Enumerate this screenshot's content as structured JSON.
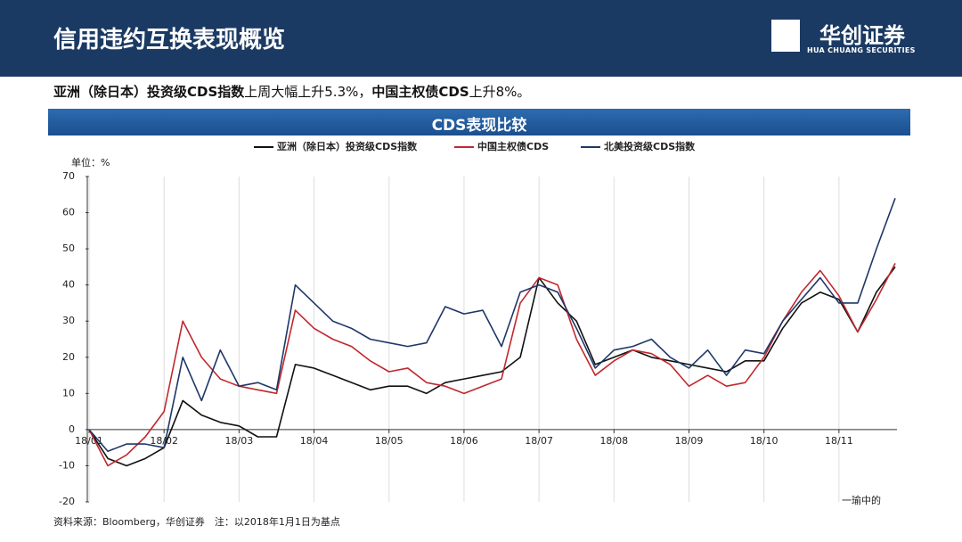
{
  "header": {
    "title": "信用违约互换表现概览",
    "logo_name": "华创证券",
    "logo_sub": "HUA CHUANG SECURITIES"
  },
  "summary": {
    "parts": [
      {
        "text": "亚洲（除日本）投资级CDS指数",
        "bold": true
      },
      {
        "text": "上周大幅上升5.3%，",
        "bold": false
      },
      {
        "text": "中国主权债CDS",
        "bold": true
      },
      {
        "text": "上升8%。",
        "bold": false
      }
    ]
  },
  "chart_data": {
    "type": "line",
    "title": "CDS表现比较",
    "unit_label": "单位：%",
    "categories": [
      "18/01",
      null,
      null,
      null,
      "18/02",
      null,
      null,
      null,
      "18/03",
      null,
      null,
      null,
      "18/04",
      null,
      null,
      null,
      "18/05",
      null,
      null,
      null,
      "18/06",
      null,
      null,
      null,
      "18/07",
      null,
      null,
      null,
      "18/08",
      null,
      null,
      null,
      "18/09",
      null,
      null,
      null,
      "18/10",
      null,
      null,
      null,
      "18/11",
      null,
      null,
      null
    ],
    "series": [
      {
        "name": "亚洲（除日本）投资级CDS指数",
        "color": "#111111",
        "values": [
          0,
          -8,
          -10,
          -8,
          -5,
          8,
          4,
          2,
          1,
          -2,
          -2,
          18,
          17,
          15,
          13,
          11,
          12,
          12,
          10,
          13,
          14,
          15,
          16,
          20,
          42,
          35,
          30,
          18,
          20,
          22,
          20,
          19,
          18,
          17,
          16,
          19,
          19,
          28,
          35,
          38,
          36,
          27,
          38,
          45
        ]
      },
      {
        "name": "中国主权债CDS",
        "color": "#c0282d",
        "values": [
          0,
          -10,
          -7,
          -2,
          5,
          30,
          20,
          14,
          12,
          11,
          10,
          33,
          28,
          25,
          23,
          19,
          16,
          17,
          13,
          12,
          10,
          12,
          14,
          35,
          42,
          40,
          25,
          15,
          19,
          22,
          21,
          18,
          12,
          15,
          12,
          13,
          20,
          30,
          38,
          44,
          37,
          27,
          36,
          46
        ]
      },
      {
        "name": "北美投资级CDS指数",
        "color": "#1f3768",
        "values": [
          0,
          -6,
          -4,
          -4,
          -5,
          20,
          8,
          22,
          12,
          13,
          11,
          40,
          35,
          30,
          28,
          25,
          24,
          23,
          24,
          34,
          32,
          33,
          23,
          38,
          40,
          38,
          28,
          17,
          22,
          23,
          25,
          20,
          17,
          22,
          15,
          22,
          21,
          30,
          36,
          42,
          35,
          35,
          50,
          64
        ]
      }
    ],
    "ylim": [
      -20,
      70
    ],
    "yticks": [
      -20,
      -10,
      0,
      10,
      20,
      30,
      40,
      50,
      60,
      70
    ],
    "grid": true,
    "source": "资料来源：Bloomberg，华创证券　注：以2018年1月1日为基点"
  },
  "watermark": "一瑜中的"
}
